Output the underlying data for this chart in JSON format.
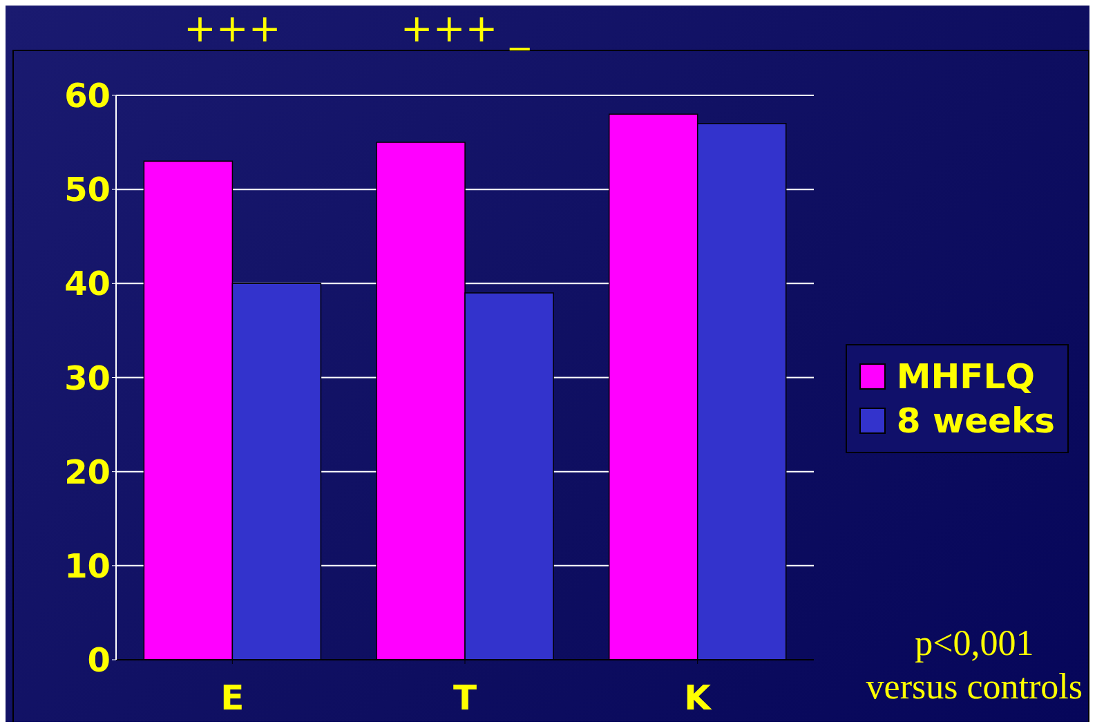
{
  "chart_data": {
    "type": "bar",
    "categories": [
      "E",
      "T",
      "K"
    ],
    "series": [
      {
        "name": "MHFLQ",
        "color": "#ff00ff",
        "values": [
          53,
          55,
          58
        ]
      },
      {
        "name": "8 weeks",
        "color": "#3333cc",
        "values": [
          40,
          39,
          57
        ]
      }
    ],
    "ylim": [
      0,
      60
    ],
    "yticks": [
      0,
      10,
      20,
      30,
      40,
      50,
      60
    ],
    "grid": "y",
    "legend": "right",
    "annotations": [
      "+++",
      "+++ _",
      "p<0,001\nversus controls"
    ]
  }
}
